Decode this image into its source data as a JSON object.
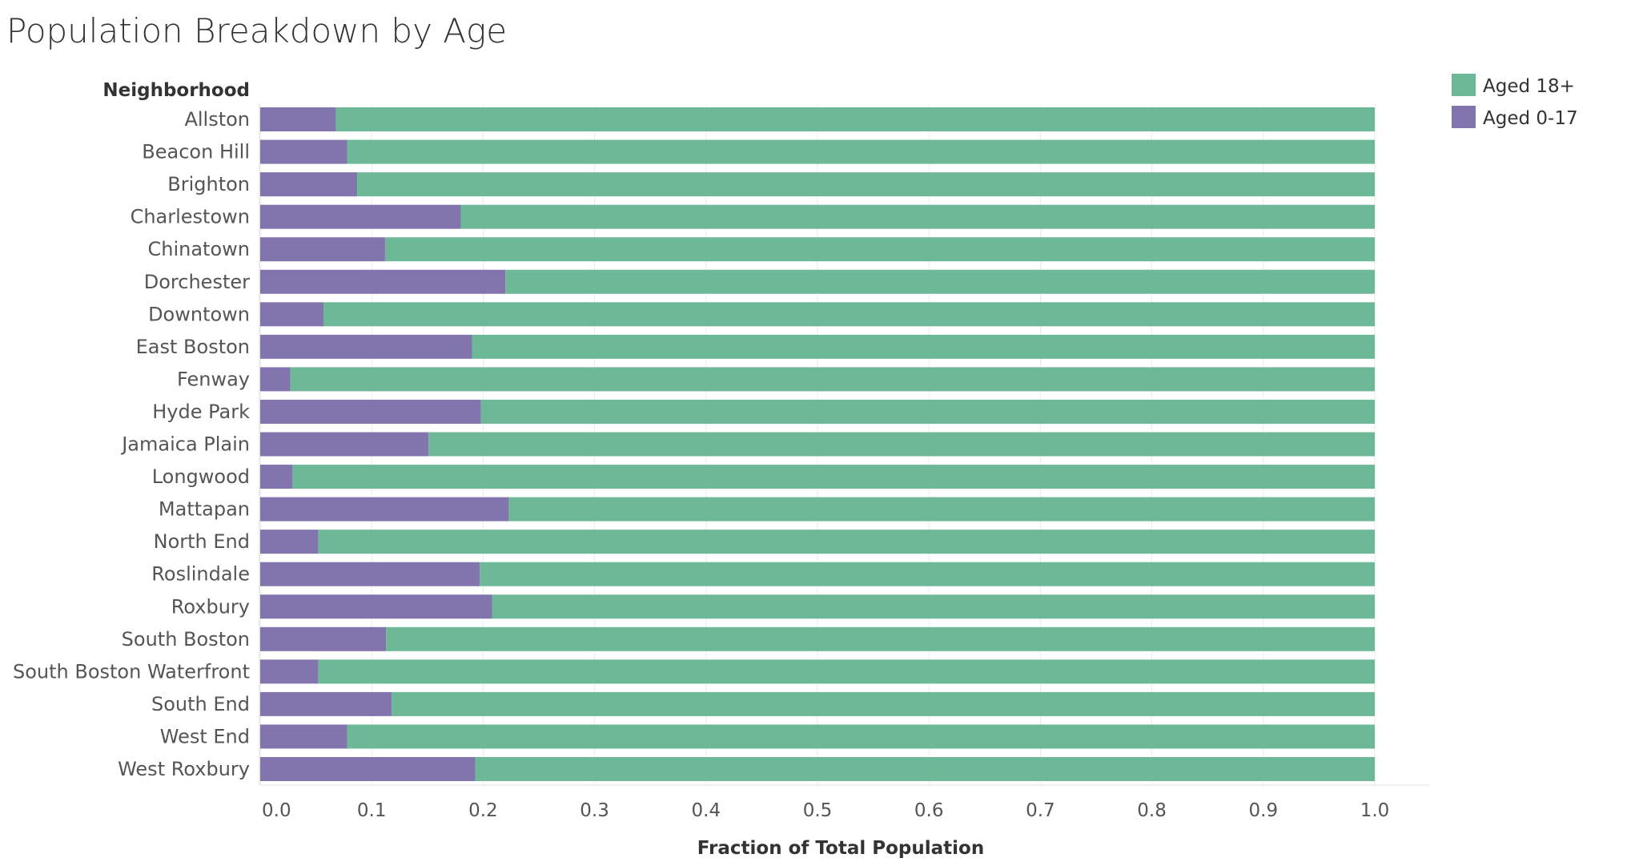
{
  "chart_data": {
    "type": "bar",
    "orientation": "horizontal",
    "stacked": true,
    "title": "Population Breakdown by Age",
    "row_header": "Neighborhood",
    "xlabel": "Fraction of Total Population",
    "xlim": [
      0,
      1.0
    ],
    "x_ticks": [
      "0.0",
      "0.1",
      "0.2",
      "0.3",
      "0.4",
      "0.5",
      "0.6",
      "0.7",
      "0.8",
      "0.9",
      "1.0"
    ],
    "grid": true,
    "legend_position": "top-right",
    "categories": [
      "Allston",
      "Beacon Hill",
      "Brighton",
      "Charlestown",
      "Chinatown",
      "Dorchester",
      "Downtown",
      "East Boston",
      "Fenway",
      "Hyde Park",
      "Jamaica Plain",
      "Longwood",
      "Mattapan",
      "North End",
      "Roslindale",
      "Roxbury",
      "South Boston",
      "South Boston Waterfront",
      "South End",
      "West End",
      "West Roxbury"
    ],
    "series": [
      {
        "name": "Aged 0-17",
        "color": "#8274ad",
        "values": [
          0.068,
          0.078,
          0.087,
          0.18,
          0.112,
          0.22,
          0.057,
          0.19,
          0.027,
          0.198,
          0.151,
          0.029,
          0.223,
          0.052,
          0.197,
          0.208,
          0.113,
          0.052,
          0.118,
          0.078,
          0.193
        ]
      },
      {
        "name": "Aged 18+",
        "color": "#6db897",
        "values": [
          0.932,
          0.922,
          0.913,
          0.82,
          0.888,
          0.78,
          0.943,
          0.81,
          0.973,
          0.802,
          0.849,
          0.971,
          0.777,
          0.948,
          0.803,
          0.792,
          0.887,
          0.948,
          0.882,
          0.922,
          0.807
        ]
      }
    ],
    "legend": [
      {
        "label": "Aged 18+",
        "color": "#6db897"
      },
      {
        "label": "Aged 0-17",
        "color": "#8274ad"
      }
    ]
  }
}
